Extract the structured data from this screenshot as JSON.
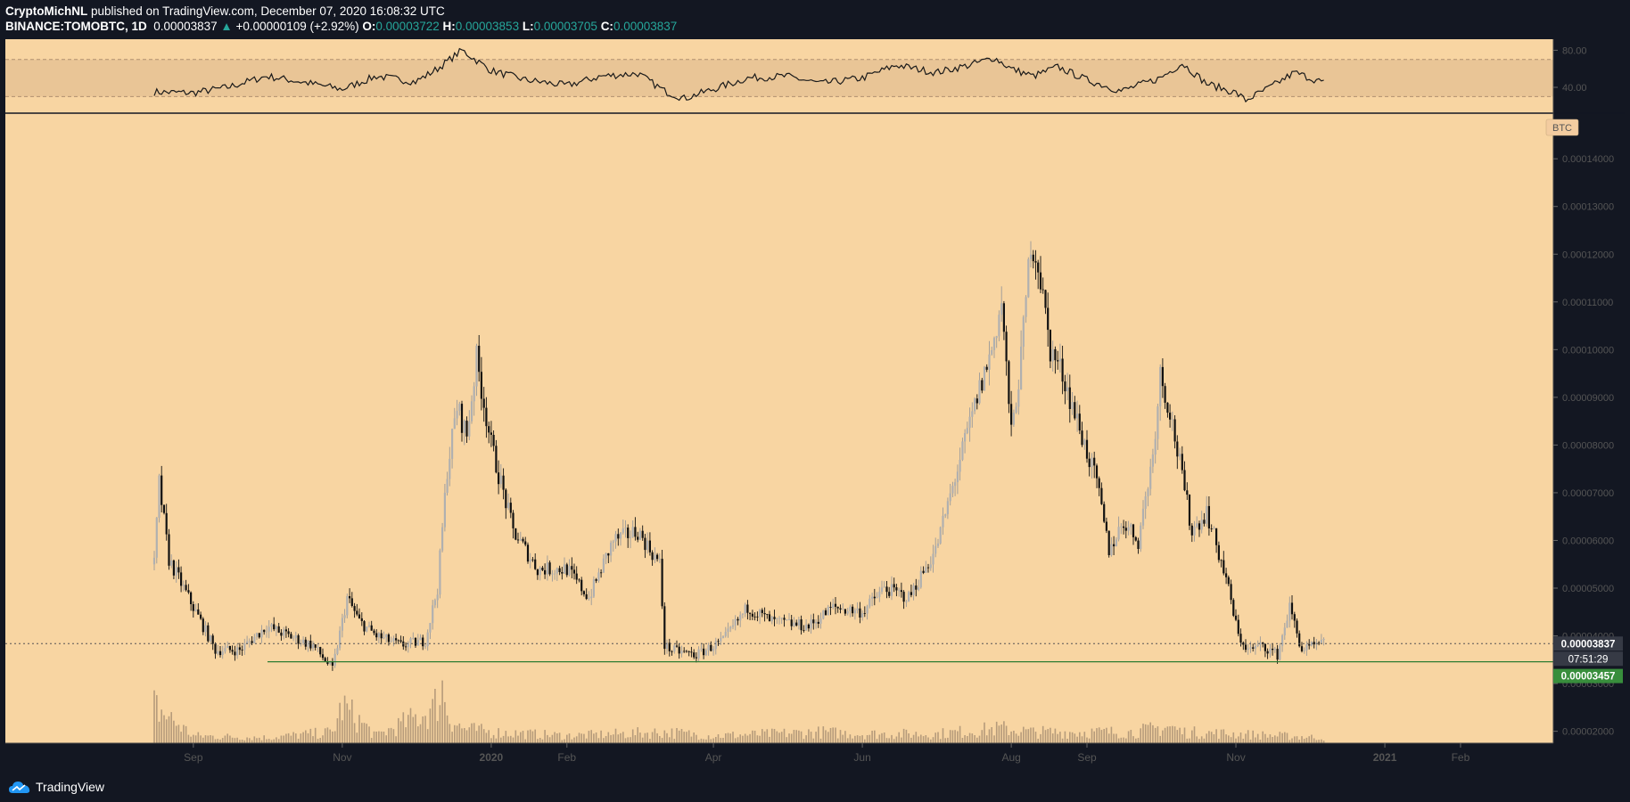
{
  "header": {
    "author": "CryptoMichNL",
    "published": "published on TradingView.com, December 07, 2020 16:08:32 UTC",
    "symbol": "BINANCE:TOMOBTC, 1D",
    "last": "0.00003837",
    "change": "+0.00000109 (+2.92%)",
    "o_label": "O:",
    "o": "0.00003722",
    "h_label": "H:",
    "h": "0.00003853",
    "l_label": "L:",
    "l": "0.00003705",
    "c_label": "C:",
    "c": "0.00003837"
  },
  "footer": {
    "brand": "TradingView"
  },
  "colors": {
    "background": "#131722",
    "chart_bg": "#f8d5a2",
    "rsi_band": "#e9c596",
    "support_line": "#2e7d32",
    "label_dark": "#363a45",
    "label_green": "#388e3c",
    "candle": "#000000",
    "axis_text": "#555555"
  },
  "chart_data": [
    {
      "type": "line",
      "panel": "RSI",
      "y_ticks": [
        "80.00",
        "40.00"
      ],
      "ylim": [
        15,
        90
      ],
      "band": [
        30,
        70
      ],
      "x": [
        "2019-08-16",
        "2019-09-01",
        "2019-09-15",
        "2019-10-01",
        "2019-10-15",
        "2019-11-01",
        "2019-11-15",
        "2019-12-01",
        "2019-12-10",
        "2019-12-20",
        "2020-01-01",
        "2020-01-15",
        "2020-02-01",
        "2020-02-15",
        "2020-03-01",
        "2020-03-12",
        "2020-03-20",
        "2020-04-01",
        "2020-04-15",
        "2020-05-01",
        "2020-05-15",
        "2020-06-01",
        "2020-06-15",
        "2020-07-01",
        "2020-07-15",
        "2020-07-25",
        "2020-08-01",
        "2020-08-10",
        "2020-08-20",
        "2020-09-01",
        "2020-09-15",
        "2020-10-01",
        "2020-10-10",
        "2020-10-20",
        "2020-11-01",
        "2020-11-05",
        "2020-11-15",
        "2020-11-25",
        "2020-12-07"
      ],
      "values": [
        35,
        34,
        40,
        52,
        46,
        38,
        52,
        46,
        60,
        80,
        58,
        48,
        42,
        52,
        55,
        36,
        28,
        38,
        50,
        52,
        44,
        50,
        64,
        56,
        64,
        72,
        60,
        52,
        62,
        48,
        36,
        50,
        66,
        44,
        34,
        26,
        40,
        56,
        45
      ]
    },
    {
      "type": "candlestick",
      "panel": "price",
      "unit": "BTC",
      "y_ticks": [
        "0.00014000",
        "0.00013000",
        "0.00012000",
        "0.00011000",
        "0.00010000",
        "0.00009000",
        "0.00008000",
        "0.00007000",
        "0.00006000",
        "0.00005000",
        "0.00004000",
        "0.00003000",
        "0.00002000"
      ],
      "ylim": [
        1.75e-05,
        0.000149
      ],
      "x_ticks": [
        "Sep",
        "Nov",
        "2020",
        "Feb",
        "Apr",
        "Jun",
        "Aug",
        "Sep",
        "Nov",
        "2021",
        "Feb"
      ],
      "x_tick_dates": [
        "2019-09-01",
        "2019-11-01",
        "2020-01-01",
        "2020-02-01",
        "2020-04-01",
        "2020-06-01",
        "2020-08-01",
        "2020-09-01",
        "2020-11-01",
        "2021-01-01",
        "2021-02-01"
      ],
      "x_range": [
        "2019-06-16",
        "2021-03-11"
      ],
      "close": {
        "x": [
          "2019-08-16",
          "2019-08-18",
          "2019-08-22",
          "2019-09-01",
          "2019-09-10",
          "2019-09-20",
          "2019-10-01",
          "2019-10-10",
          "2019-10-20",
          "2019-10-28",
          "2019-11-03",
          "2019-11-08",
          "2019-11-15",
          "2019-11-25",
          "2019-12-05",
          "2019-12-10",
          "2019-12-14",
          "2019-12-18",
          "2019-12-22",
          "2019-12-26",
          "2020-01-01",
          "2020-01-10",
          "2020-01-20",
          "2020-02-01",
          "2020-02-10",
          "2020-02-20",
          "2020-03-01",
          "2020-03-10",
          "2020-03-12",
          "2020-03-15",
          "2020-03-25",
          "2020-04-05",
          "2020-04-15",
          "2020-04-25",
          "2020-05-10",
          "2020-05-20",
          "2020-06-01",
          "2020-06-10",
          "2020-06-20",
          "2020-07-01",
          "2020-07-10",
          "2020-07-18",
          "2020-07-24",
          "2020-07-28",
          "2020-08-01",
          "2020-08-05",
          "2020-08-09",
          "2020-08-12",
          "2020-08-17",
          "2020-08-22",
          "2020-08-28",
          "2020-09-05",
          "2020-09-10",
          "2020-09-16",
          "2020-09-22",
          "2020-09-28",
          "2020-10-01",
          "2020-10-05",
          "2020-10-09",
          "2020-10-14",
          "2020-10-20",
          "2020-10-28",
          "2020-11-02",
          "2020-11-06",
          "2020-11-12",
          "2020-11-18",
          "2020-11-23",
          "2020-11-28",
          "2020-12-07"
        ],
        "values": [
          5.5e-05,
          7.2e-05,
          5.6e-05,
          4.6e-05,
          3.7e-05,
          3.7e-05,
          4.2e-05,
          4e-05,
          3.8e-05,
          3.3e-05,
          4.8e-05,
          4.3e-05,
          4e-05,
          3.8e-05,
          3.9e-05,
          5e-05,
          7.5e-05,
          8.8e-05,
          8.2e-05,
          9.8e-05,
          8e-05,
          6.2e-05,
          5.4e-05,
          5.4e-05,
          4.8e-05,
          6e-05,
          6.2e-05,
          5.5e-05,
          3.8e-05,
          3.7e-05,
          3.6e-05,
          3.9e-05,
          4.6e-05,
          4.3e-05,
          4.2e-05,
          4.6e-05,
          4.5e-05,
          5e-05,
          4.8e-05,
          5.8e-05,
          7.5e-05,
          9e-05,
          0.0001,
          0.00011,
          8.2e-05,
          9.8e-05,
          0.000123,
          0.000118,
          0.0001,
          9.5e-05,
          8.5e-05,
          7.2e-05,
          5.8e-05,
          6.4e-05,
          6e-05,
          7.8e-05,
          9.5e-05,
          8.7e-05,
          7.6e-05,
          6.2e-05,
          6.6e-05,
          5.2e-05,
          4e-05,
          3.7e-05,
          3.8e-05,
          3.6e-05,
          4.6e-05,
          3.7e-05,
          3.84e-05
        ]
      },
      "volume": {
        "x": [
          "2019-08-16",
          "2019-09-01",
          "2019-10-01",
          "2019-10-28",
          "2019-11-01",
          "2019-11-15",
          "2019-12-08",
          "2019-12-12",
          "2019-12-15",
          "2019-12-20",
          "2020-01-01",
          "2020-02-01",
          "2020-03-12",
          "2020-04-01",
          "2020-05-15",
          "2020-06-01",
          "2020-07-01",
          "2020-07-28",
          "2020-08-10",
          "2020-09-01",
          "2020-09-20",
          "2020-10-05",
          "2020-10-10",
          "2020-11-01",
          "2020-12-07"
        ],
        "values": [
          1.0,
          0.2,
          0.15,
          0.3,
          1.0,
          0.2,
          0.9,
          1.5,
          0.7,
          0.4,
          0.3,
          0.2,
          0.3,
          0.2,
          0.3,
          0.25,
          0.25,
          0.4,
          0.3,
          0.3,
          0.3,
          0.45,
          0.3,
          0.25,
          0.15
        ]
      },
      "hlines": [
        {
          "label": "0.00003837",
          "value": 3.837e-05,
          "style": "dotted"
        },
        {
          "label": "0.00003457",
          "value": 3.457e-05,
          "style": "support"
        }
      ],
      "countdown": "07:51:29"
    }
  ]
}
